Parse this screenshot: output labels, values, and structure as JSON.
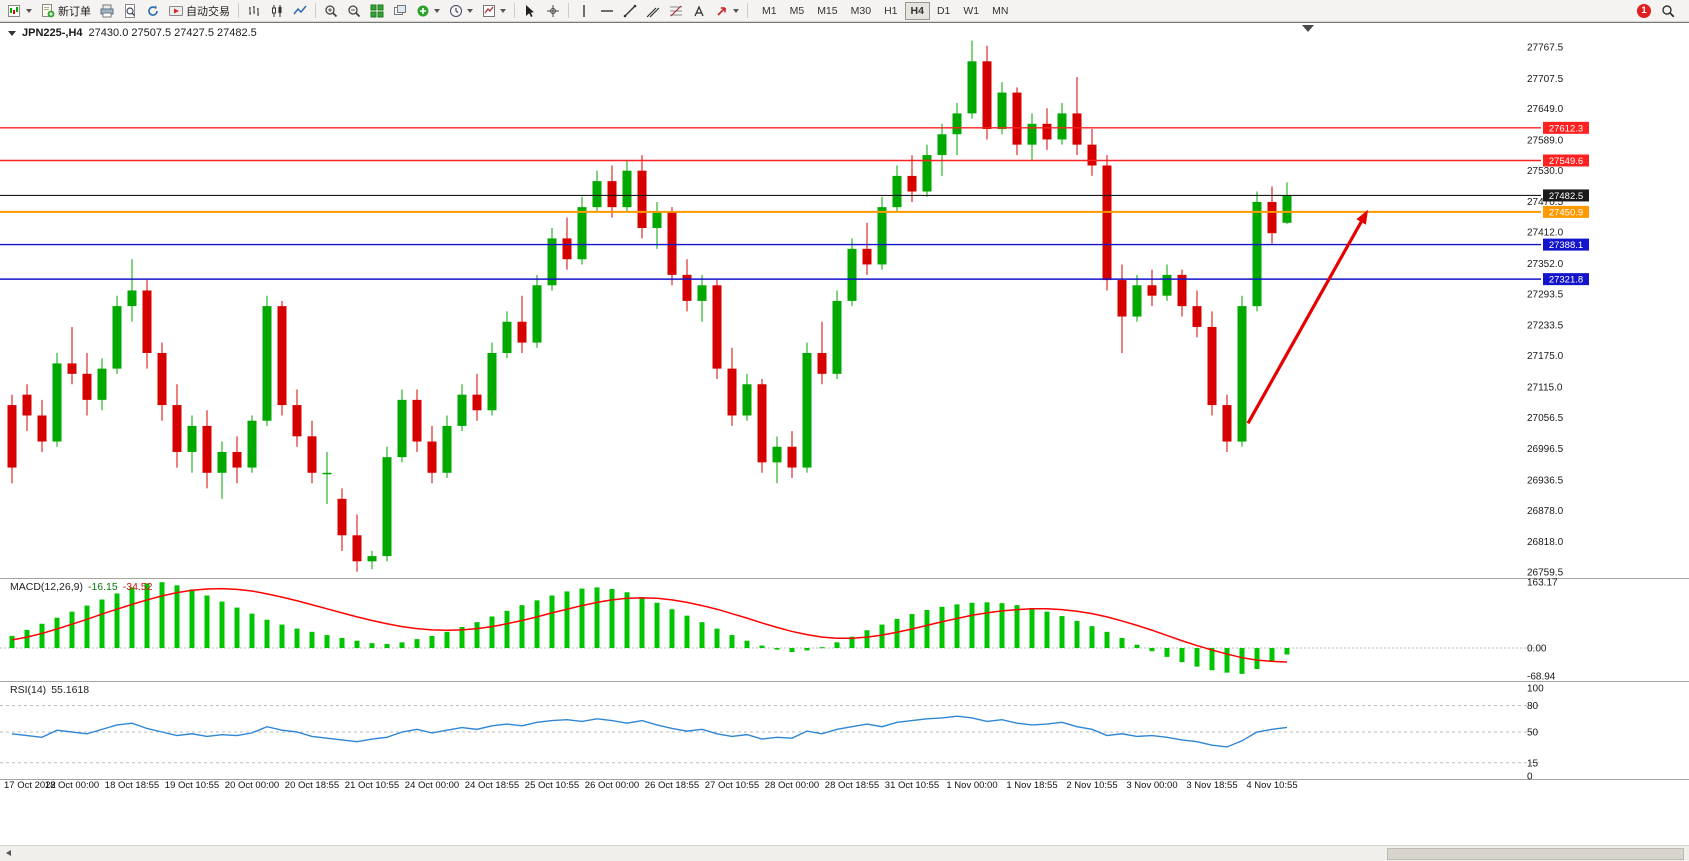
{
  "toolbar": {
    "new_order_label": "新订单",
    "autotrading_label": "自动交易",
    "timeframes": [
      "M1",
      "M5",
      "M15",
      "M30",
      "H1",
      "H4",
      "D1",
      "W1",
      "MN"
    ],
    "active_timeframe": "H4",
    "notification_count": "1"
  },
  "chart_header": {
    "symbol": "JPN225-,H4",
    "ohlc": "27430.0 27507.5 27427.5 27482.5"
  },
  "chart_data": [
    {
      "type": "candlestick",
      "title": "JPN225-,H4",
      "timeframe": "H4",
      "open": 27430.0,
      "high": 27507.5,
      "low": 27427.5,
      "close": 27482.5,
      "up_color": "#00a800",
      "down_color": "#d60000",
      "y_ticks": [
        27767.5,
        27707.5,
        27649.0,
        27589.0,
        27530.0,
        27470.5,
        27412.0,
        27352.0,
        27293.5,
        27233.5,
        27175.0,
        27115.0,
        27056.5,
        26996.5,
        26936.5,
        26878.0,
        26818.0,
        26759.5
      ],
      "levels": [
        {
          "price": 27612.3,
          "color": "#ff2020",
          "label": "27612.3",
          "role": "resistance"
        },
        {
          "price": 27549.6,
          "color": "#ff2020",
          "label": "27549.6",
          "role": "resistance"
        },
        {
          "price": 27482.5,
          "color": "#1a1a1a",
          "label": "27482.5",
          "role": "current-price"
        },
        {
          "price": 27450.9,
          "color": "#ff9900",
          "label": "27450.9",
          "role": "level"
        },
        {
          "price": 27388.1,
          "color": "#1414cc",
          "label": "27388.1",
          "role": "support"
        },
        {
          "price": 27321.8,
          "color": "#1414cc",
          "label": "27321.8",
          "role": "support"
        }
      ],
      "x_labels": [
        "17 Oct 2022",
        "18 Oct 00:00",
        "18 Oct 18:55",
        "19 Oct 10:55",
        "20 Oct 00:00",
        "20 Oct 18:55",
        "21 Oct 10:55",
        "24 Oct 00:00",
        "24 Oct 18:55",
        "25 Oct 10:55",
        "26 Oct 00:00",
        "26 Oct 18:55",
        "27 Oct 10:55",
        "28 Oct 00:00",
        "28 Oct 18:55",
        "31 Oct 10:55",
        "1 Nov 00:00",
        "1 Nov 18:55",
        "2 Nov 10:55",
        "3 Nov 00:00",
        "3 Nov 18:55",
        "4 Nov 10:55"
      ],
      "bars_per_label": 4,
      "candles": [
        [
          27080,
          27100,
          26930,
          26960
        ],
        [
          27100,
          27120,
          27030,
          27060
        ],
        [
          27060,
          27090,
          26990,
          27010
        ],
        [
          27010,
          27180,
          27000,
          27160
        ],
        [
          27160,
          27230,
          27120,
          27140
        ],
        [
          27140,
          27180,
          27060,
          27090
        ],
        [
          27090,
          27170,
          27070,
          27150
        ],
        [
          27150,
          27290,
          27140,
          27270
        ],
        [
          27270,
          27360,
          27240,
          27300
        ],
        [
          27300,
          27320,
          27150,
          27180
        ],
        [
          27180,
          27200,
          27050,
          27080
        ],
        [
          27080,
          27120,
          26960,
          26990
        ],
        [
          26990,
          27060,
          26950,
          27040
        ],
        [
          27040,
          27070,
          26920,
          26950
        ],
        [
          26950,
          27010,
          26900,
          26990
        ],
        [
          26990,
          27020,
          26930,
          26960
        ],
        [
          26960,
          27060,
          26950,
          27050
        ],
        [
          27050,
          27290,
          27040,
          27270
        ],
        [
          27270,
          27280,
          27060,
          27080
        ],
        [
          27080,
          27110,
          27000,
          27020
        ],
        [
          27020,
          27050,
          26930,
          26950
        ],
        [
          26950,
          26990,
          26890,
          26950
        ],
        [
          26900,
          26920,
          26800,
          26830
        ],
        [
          26830,
          26870,
          26760,
          26780
        ],
        [
          26780,
          26800,
          26765,
          26790
        ],
        [
          26790,
          27000,
          26780,
          26980
        ],
        [
          26980,
          27110,
          26970,
          27090
        ],
        [
          27090,
          27110,
          26990,
          27010
        ],
        [
          27010,
          27040,
          26930,
          26950
        ],
        [
          26950,
          27060,
          26940,
          27040
        ],
        [
          27040,
          27120,
          27030,
          27100
        ],
        [
          27100,
          27140,
          27050,
          27070
        ],
        [
          27070,
          27200,
          27060,
          27180
        ],
        [
          27180,
          27260,
          27170,
          27240
        ],
        [
          27240,
          27290,
          27180,
          27200
        ],
        [
          27200,
          27330,
          27190,
          27310
        ],
        [
          27310,
          27420,
          27300,
          27400
        ],
        [
          27400,
          27440,
          27340,
          27360
        ],
        [
          27360,
          27480,
          27350,
          27460
        ],
        [
          27460,
          27530,
          27450,
          27510
        ],
        [
          27510,
          27540,
          27440,
          27460
        ],
        [
          27460,
          27550,
          27450,
          27530
        ],
        [
          27530,
          27560,
          27400,
          27420
        ],
        [
          27420,
          27470,
          27380,
          27450
        ],
        [
          27450,
          27460,
          27310,
          27330
        ],
        [
          27330,
          27360,
          27260,
          27280
        ],
        [
          27280,
          27330,
          27240,
          27310
        ],
        [
          27310,
          27320,
          27130,
          27150
        ],
        [
          27150,
          27190,
          27040,
          27060
        ],
        [
          27060,
          27140,
          27050,
          27120
        ],
        [
          27120,
          27130,
          26950,
          26970
        ],
        [
          26970,
          27020,
          26930,
          27000
        ],
        [
          27000,
          27030,
          26940,
          26960
        ],
        [
          26960,
          27200,
          26950,
          27180
        ],
        [
          27180,
          27240,
          27120,
          27140
        ],
        [
          27140,
          27300,
          27130,
          27280
        ],
        [
          27280,
          27400,
          27270,
          27380
        ],
        [
          27380,
          27430,
          27330,
          27350
        ],
        [
          27350,
          27480,
          27340,
          27460
        ],
        [
          27460,
          27540,
          27450,
          27520
        ],
        [
          27520,
          27560,
          27470,
          27490
        ],
        [
          27490,
          27580,
          27480,
          27560
        ],
        [
          27560,
          27620,
          27520,
          27600
        ],
        [
          27600,
          27660,
          27560,
          27640
        ],
        [
          27640,
          27780,
          27630,
          27740
        ],
        [
          27740,
          27770,
          27590,
          27610
        ],
        [
          27610,
          27700,
          27600,
          27680
        ],
        [
          27680,
          27690,
          27560,
          27580
        ],
        [
          27580,
          27640,
          27550,
          27620
        ],
        [
          27620,
          27650,
          27570,
          27590
        ],
        [
          27590,
          27660,
          27580,
          27640
        ],
        [
          27640,
          27710,
          27560,
          27580
        ],
        [
          27580,
          27610,
          27520,
          27540
        ],
        [
          27540,
          27560,
          27300,
          27320
        ],
        [
          27320,
          27350,
          27180,
          27250
        ],
        [
          27250,
          27330,
          27240,
          27310
        ],
        [
          27310,
          27340,
          27270,
          27290
        ],
        [
          27290,
          27350,
          27280,
          27330
        ],
        [
          27330,
          27340,
          27250,
          27270
        ],
        [
          27270,
          27300,
          27210,
          27230
        ],
        [
          27230,
          27260,
          27060,
          27080
        ],
        [
          27080,
          27100,
          26990,
          27010
        ],
        [
          27010,
          27290,
          27000,
          27270
        ],
        [
          27270,
          27490,
          27260,
          27470
        ],
        [
          27470,
          27500,
          27390,
          27410
        ],
        [
          27430,
          27507.5,
          27427.5,
          27482.5
        ]
      ],
      "annotation_arrow": {
        "from_bar": 82.4,
        "from_price": 27045,
        "to_bar": 90.4,
        "to_price": 27455,
        "color": "#e60000"
      }
    },
    {
      "type": "bar",
      "name": "MACD(12,26,9)",
      "main_value": "-16.15",
      "signal_value": "-34.52",
      "axis_labels": [
        163.17,
        0.0,
        -68.94
      ],
      "histogram_color": "#00c400",
      "signal_color": "#ff0000",
      "values": [
        30,
        45,
        60,
        75,
        90,
        105,
        120,
        135,
        150,
        160,
        163,
        155,
        145,
        130,
        115,
        100,
        85,
        70,
        58,
        48,
        40,
        32,
        25,
        18,
        12,
        10,
        14,
        22,
        30,
        40,
        52,
        64,
        78,
        92,
        106,
        118,
        130,
        140,
        147,
        150,
        146,
        138,
        126,
        112,
        96,
        80,
        64,
        48,
        32,
        18,
        6,
        -4,
        -10,
        -6,
        2,
        14,
        28,
        44,
        58,
        72,
        84,
        94,
        102,
        108,
        112,
        113,
        111,
        106,
        99,
        90,
        79,
        67,
        54,
        40,
        25,
        8,
        -8,
        -22,
        -35,
        -46,
        -55,
        -61,
        -64,
        -52,
        -32,
        -16.15
      ],
      "signal": [
        20,
        27,
        36,
        47,
        59,
        71,
        84,
        96,
        108,
        119,
        129,
        137,
        143,
        146,
        147,
        145,
        141,
        134,
        126,
        117,
        107,
        97,
        87,
        77,
        68,
        60,
        53,
        48,
        45,
        44,
        45,
        48,
        53,
        60,
        68,
        77,
        87,
        96,
        105,
        113,
        119,
        123,
        124,
        123,
        119,
        113,
        105,
        96,
        85,
        74,
        62,
        51,
        41,
        33,
        27,
        24,
        24,
        27,
        32,
        39,
        47,
        56,
        65,
        73,
        81,
        87,
        92,
        95,
        97,
        97,
        95,
        91,
        85,
        77,
        67,
        56,
        44,
        31,
        18,
        6,
        -5,
        -15,
        -24,
        -30,
        -33,
        -34.52
      ]
    },
    {
      "type": "line",
      "name": "RSI(14)",
      "value": "55.1618",
      "axis_labels": [
        100,
        80,
        50,
        15,
        0
      ],
      "levels": [
        80,
        50,
        15
      ],
      "color": "#2f86d5",
      "values": [
        48,
        46,
        44,
        52,
        50,
        48,
        53,
        58,
        60,
        54,
        50,
        46,
        48,
        45,
        47,
        46,
        49,
        56,
        52,
        50,
        45,
        43,
        41,
        39,
        42,
        44,
        50,
        53,
        49,
        52,
        55,
        53,
        57,
        59,
        57,
        61,
        63,
        64,
        62,
        65,
        63,
        60,
        63,
        58,
        54,
        51,
        53,
        48,
        45,
        47,
        42,
        44,
        43,
        51,
        48,
        53,
        56,
        59,
        56,
        61,
        63,
        65,
        66,
        68,
        66,
        62,
        64,
        60,
        58,
        59,
        61,
        56,
        53,
        46,
        48,
        45,
        46,
        44,
        41,
        39,
        35,
        33,
        40,
        50,
        53,
        55.16
      ]
    }
  ]
}
